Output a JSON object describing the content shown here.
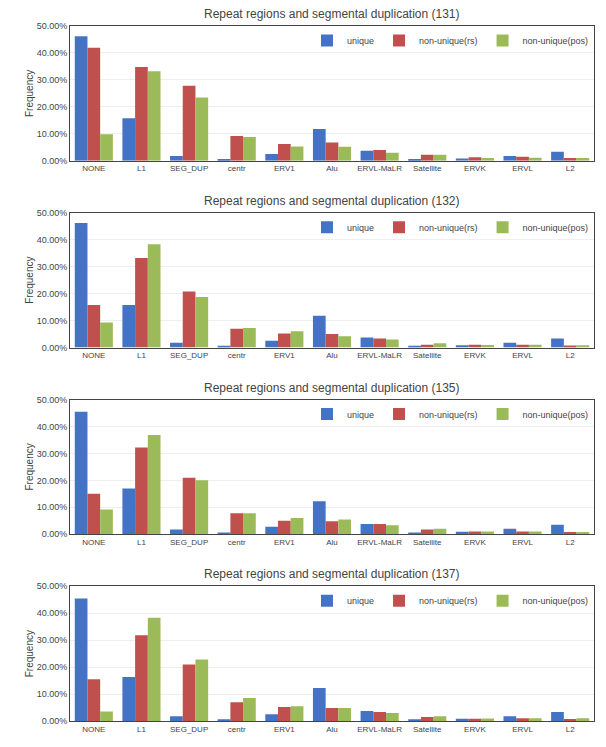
{
  "chart_data": [
    {
      "type": "bar",
      "title": "Repeat regions and segmental duplication (131)",
      "categories": [
        "NONE",
        "L1",
        "SEG_DUP",
        "centr",
        "ERV1",
        "Alu",
        "ERVL-MaLR",
        "Satellite",
        "ERVK",
        "ERVL",
        "L2"
      ],
      "series": [
        {
          "name": "unique",
          "color": "#4472C4",
          "values": [
            0.462,
            0.158,
            0.018,
            0.005,
            0.025,
            0.118,
            0.037,
            0.005,
            0.008,
            0.018,
            0.033
          ]
        },
        {
          "name": "non-unique(rs)",
          "color": "#C0504D",
          "values": [
            0.419,
            0.348,
            0.278,
            0.092,
            0.062,
            0.068,
            0.04,
            0.022,
            0.013,
            0.015,
            0.01
          ]
        },
        {
          "name": "non-unique(pos)",
          "color": "#9BBB59",
          "values": [
            0.098,
            0.332,
            0.235,
            0.088,
            0.053,
            0.052,
            0.03,
            0.022,
            0.01,
            0.011,
            0.01
          ]
        }
      ],
      "ylabel": "Frequency",
      "ylim": [
        0,
        0.5
      ],
      "yticks": [
        {
          "value": 0.0,
          "label": "0.00%"
        },
        {
          "value": 0.1,
          "label": "10.00%"
        },
        {
          "value": 0.2,
          "label": "20.00%"
        },
        {
          "value": 0.3,
          "label": "30.00%"
        },
        {
          "value": 0.4,
          "label": "40.00%"
        },
        {
          "value": 0.5,
          "label": "50.00%"
        }
      ],
      "grid": true,
      "legend": "upper right"
    },
    {
      "type": "bar",
      "title": "Repeat regions and segmental duplication (132)",
      "categories": [
        "NONE",
        "L1",
        "SEG_DUP",
        "centr",
        "ERV1",
        "Alu",
        "ERVL-MaLR",
        "Satellite",
        "ERVK",
        "ERVL",
        "L2"
      ],
      "series": [
        {
          "name": "unique",
          "color": "#4472C4",
          "values": [
            0.462,
            0.158,
            0.018,
            0.005,
            0.025,
            0.118,
            0.037,
            0.005,
            0.008,
            0.018,
            0.033
          ]
        },
        {
          "name": "non-unique(rs)",
          "color": "#C0504D",
          "values": [
            0.158,
            0.332,
            0.208,
            0.07,
            0.052,
            0.05,
            0.033,
            0.01,
            0.01,
            0.01,
            0.007
          ]
        },
        {
          "name": "non-unique(pos)",
          "color": "#9BBB59",
          "values": [
            0.093,
            0.383,
            0.187,
            0.072,
            0.06,
            0.042,
            0.03,
            0.016,
            0.009,
            0.01,
            0.008
          ]
        }
      ],
      "ylabel": "Frequency",
      "ylim": [
        0,
        0.5
      ],
      "yticks": [
        {
          "value": 0.0,
          "label": "0.00%"
        },
        {
          "value": 0.1,
          "label": "10.00%"
        },
        {
          "value": 0.2,
          "label": "20.00%"
        },
        {
          "value": 0.3,
          "label": "30.00%"
        },
        {
          "value": 0.4,
          "label": "40.00%"
        },
        {
          "value": 0.5,
          "label": "50.00%"
        }
      ],
      "grid": true,
      "legend": "upper right"
    },
    {
      "type": "bar",
      "title": "Repeat regions and segmental duplication (135)",
      "categories": [
        "NONE",
        "L1",
        "SEG_DUP",
        "centr",
        "ERV1",
        "Alu",
        "ERVL-MaLR",
        "Satellite",
        "ERVK",
        "ERVL",
        "L2"
      ],
      "series": [
        {
          "name": "unique",
          "color": "#4472C4",
          "values": [
            0.455,
            0.17,
            0.018,
            0.005,
            0.028,
            0.122,
            0.038,
            0.005,
            0.009,
            0.02,
            0.035
          ]
        },
        {
          "name": "non-unique(rs)",
          "color": "#C0504D",
          "values": [
            0.15,
            0.322,
            0.21,
            0.078,
            0.05,
            0.048,
            0.038,
            0.018,
            0.01,
            0.01,
            0.008
          ]
        },
        {
          "name": "non-unique(pos)",
          "color": "#9BBB59",
          "values": [
            0.092,
            0.368,
            0.2,
            0.078,
            0.06,
            0.055,
            0.033,
            0.02,
            0.01,
            0.01,
            0.008
          ]
        }
      ],
      "ylabel": "Frequency",
      "ylim": [
        0,
        0.5
      ],
      "yticks": [
        {
          "value": 0.0,
          "label": "0.00%"
        },
        {
          "value": 0.1,
          "label": "10.00%"
        },
        {
          "value": 0.2,
          "label": "20.00%"
        },
        {
          "value": 0.3,
          "label": "30.00%"
        },
        {
          "value": 0.4,
          "label": "40.00%"
        },
        {
          "value": 0.5,
          "label": "50.00%"
        }
      ],
      "grid": true,
      "legend": "upper right"
    },
    {
      "type": "bar",
      "title": "Repeat regions and segmental duplication (137)",
      "categories": [
        "NONE",
        "L1",
        "SEG_DUP",
        "centr",
        "ERV1",
        "Alu",
        "ERVL-MaLR",
        "Satellite",
        "ERVK",
        "ERVL",
        "L2"
      ],
      "series": [
        {
          "name": "unique",
          "color": "#4472C4",
          "values": [
            0.455,
            0.163,
            0.018,
            0.005,
            0.025,
            0.122,
            0.037,
            0.005,
            0.008,
            0.018,
            0.033
          ]
        },
        {
          "name": "non-unique(rs)",
          "color": "#C0504D",
          "values": [
            0.155,
            0.318,
            0.21,
            0.07,
            0.052,
            0.048,
            0.033,
            0.015,
            0.008,
            0.01,
            0.007
          ]
        },
        {
          "name": "non-unique(pos)",
          "color": "#9BBB59",
          "values": [
            0.035,
            0.383,
            0.228,
            0.085,
            0.055,
            0.048,
            0.03,
            0.018,
            0.009,
            0.01,
            0.01
          ]
        }
      ],
      "ylabel": "Frequency",
      "ylim": [
        0,
        0.5
      ],
      "yticks": [
        {
          "value": 0.0,
          "label": "0.00%"
        },
        {
          "value": 0.1,
          "label": "10.00%"
        },
        {
          "value": 0.2,
          "label": "20.00%"
        },
        {
          "value": 0.3,
          "label": "30.00%"
        },
        {
          "value": 0.4,
          "label": "40.00%"
        },
        {
          "value": 0.5,
          "label": "50.00%"
        }
      ],
      "grid": true,
      "legend": "upper right"
    }
  ]
}
